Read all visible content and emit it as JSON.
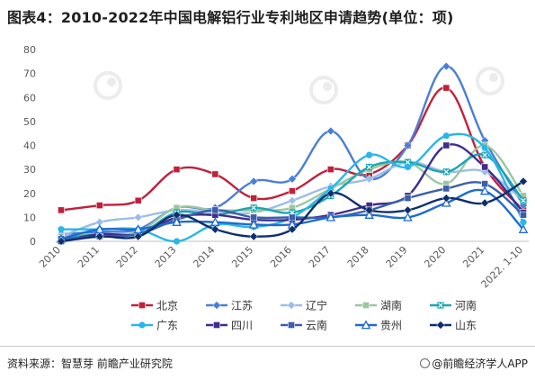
{
  "title": "图表4：2010-2022年中国电解铝行业专利地区申请趋势(单位：项)",
  "footer": {
    "source": "资料来源：智慧芽 前瞻产业研究院",
    "brand": "@前瞻经济学人APP"
  },
  "colors": {
    "北京": "#c0213a",
    "江苏": "#4a7fd4",
    "辽宁": "#9bbde8",
    "湖南": "#9cc6a0",
    "河南": "#1aa6b3",
    "广东": "#29b6e8",
    "四川": "#3f2c8c",
    "云南": "#3b5fa8",
    "贵州": "#1f6bd0",
    "山东": "#0d2f6e",
    "grid": "#e4e4e4",
    "axis_text": "#595959"
  },
  "chart_data": {
    "type": "line",
    "title": "图表4：2010-2022年中国电解铝行业专利地区申请趋势(单位：项)",
    "xlabel": "",
    "ylabel": "",
    "ylim": [
      0,
      80
    ],
    "yticks": [
      0,
      10,
      20,
      30,
      40,
      50,
      60,
      70,
      80
    ],
    "grid": false,
    "legend_position": "bottom",
    "categories": [
      "2010",
      "2011",
      "2012",
      "2013",
      "2014",
      "2015",
      "2016",
      "2017",
      "2018",
      "2019",
      "2020",
      "2021",
      "2022. 1-10"
    ],
    "series": [
      {
        "name": "北京",
        "marker": "square",
        "values": [
          13,
          15,
          17,
          30,
          28,
          18,
          21,
          30,
          28,
          40,
          64,
          31,
          13
        ]
      },
      {
        "name": "江苏",
        "marker": "diamond",
        "values": [
          3,
          4,
          5,
          14,
          14,
          25,
          26,
          46,
          26,
          40,
          73,
          42,
          15
        ]
      },
      {
        "name": "辽宁",
        "marker": "diamond",
        "values": [
          2,
          8,
          10,
          13,
          12,
          12,
          17,
          23,
          26,
          33,
          29,
          29,
          17
        ]
      },
      {
        "name": "湖南",
        "marker": "square",
        "values": [
          2,
          3,
          4,
          14,
          13,
          13,
          14,
          22,
          30,
          33,
          24,
          40,
          19
        ]
      },
      {
        "name": "河南",
        "marker": "x",
        "values": [
          1,
          3,
          3,
          12,
          11,
          14,
          12,
          19,
          31,
          33,
          29,
          36,
          17
        ]
      },
      {
        "name": "广东",
        "marker": "circle",
        "values": [
          5,
          5,
          5,
          0,
          7,
          6,
          10,
          22,
          36,
          31,
          44,
          39,
          8
        ]
      },
      {
        "name": "四川",
        "marker": "square",
        "values": [
          0,
          3,
          3,
          10,
          11,
          9,
          9,
          11,
          15,
          19,
          40,
          31,
          12
        ]
      },
      {
        "name": "云南",
        "marker": "square",
        "values": [
          1,
          2,
          3,
          9,
          13,
          10,
          10,
          10,
          13,
          18,
          22,
          24,
          11
        ]
      },
      {
        "name": "贵州",
        "marker": "triangle",
        "values": [
          1,
          5,
          5,
          8,
          8,
          7,
          7,
          10,
          11,
          10,
          16,
          21,
          5
        ]
      },
      {
        "name": "山东",
        "marker": "diamond",
        "values": [
          0,
          2,
          2,
          11,
          5,
          2,
          5,
          20,
          13,
          13,
          18,
          16,
          25
        ]
      }
    ]
  }
}
